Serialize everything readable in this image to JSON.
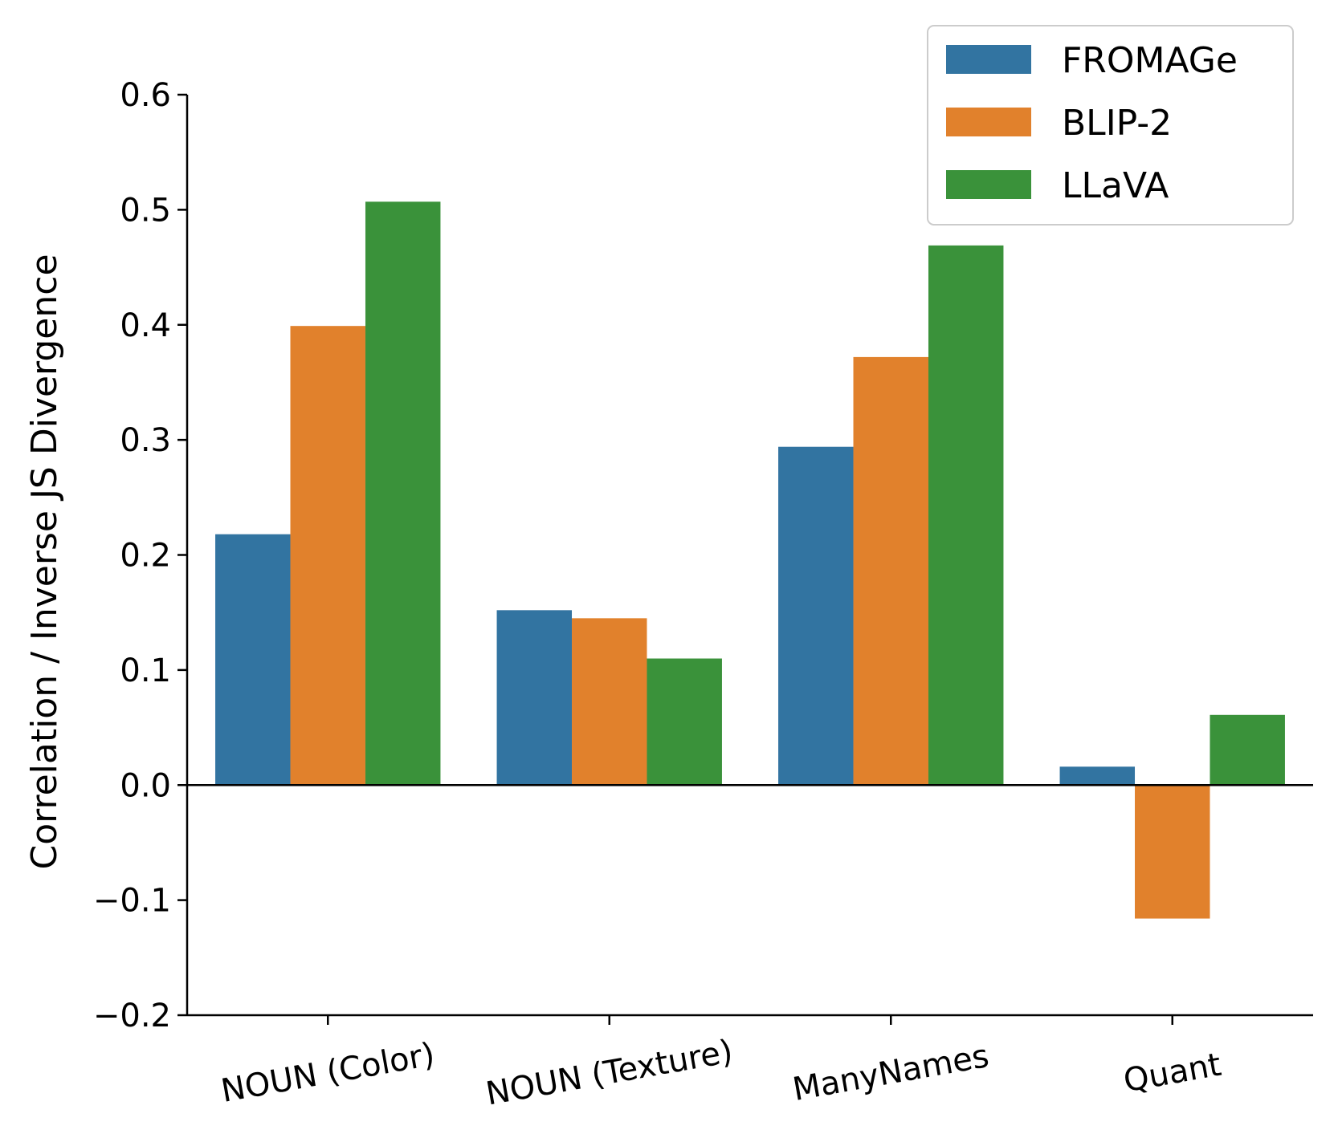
{
  "chart_data": {
    "type": "bar",
    "title": "",
    "xlabel": "",
    "ylabel": "Correlation / Inverse JS Divergence",
    "categories": [
      "NOUN (Color)",
      "NOUN (Texture)",
      "ManyNames",
      "Quant"
    ],
    "series": [
      {
        "name": "FROMAGe",
        "color": "#3274a1",
        "values": [
          0.218,
          0.152,
          0.294,
          0.016
        ]
      },
      {
        "name": "BLIP-2",
        "color": "#e1812c",
        "values": [
          0.399,
          0.145,
          0.372,
          -0.116
        ]
      },
      {
        "name": "LLaVA",
        "color": "#3a923a",
        "values": [
          0.507,
          0.11,
          0.469,
          0.061
        ]
      }
    ],
    "ylim": [
      -0.2,
      0.6
    ],
    "yticks": [
      -0.2,
      -0.1,
      0.0,
      0.1,
      0.2,
      0.3,
      0.4,
      0.5,
      0.6
    ],
    "ytick_labels": [
      "−0.2",
      "−0.1",
      "0.0",
      "0.1",
      "0.2",
      "0.3",
      "0.4",
      "0.5",
      "0.6"
    ],
    "legend_position": "top-right",
    "grid": false,
    "zero_line": true
  }
}
